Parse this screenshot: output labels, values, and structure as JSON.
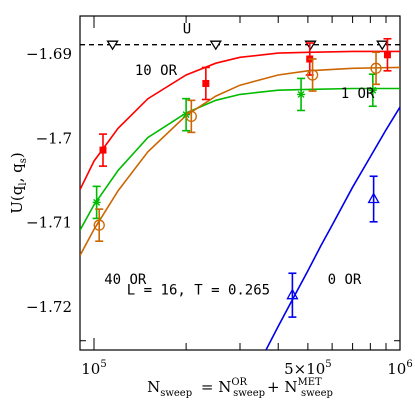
{
  "chart_data": {
    "type": "scatter",
    "title": "",
    "xlabel": {
      "parts": [
        {
          "text": "N",
          "sub": "sweep"
        },
        {
          "text": " = N",
          "sup": "OR",
          "sub": "sweep"
        },
        {
          "text": "+ N",
          "sup": "MET",
          "sub": "sweep"
        }
      ]
    },
    "ylabel": {
      "text": "U(q",
      "sub1": "l",
      "mid": ", q",
      "sub2": "s",
      "end": ")"
    },
    "x_scale": "log",
    "xlim": [
      90000,
      1000000
    ],
    "ylim": [
      -1.7251,
      -1.6855
    ],
    "grid": false,
    "x_tick_labels": [
      {
        "value": 100000,
        "mantissa": "10",
        "exp": "5"
      },
      {
        "value": 500000,
        "mantissa": "5×10",
        "exp": "5"
      },
      {
        "value": 1000000,
        "mantissa": "10",
        "exp": "6"
      }
    ],
    "y_tick_labels": [
      {
        "value": -1.69,
        "label": "−1.69"
      },
      {
        "value": -1.7,
        "label": "−1.7"
      },
      {
        "value": -1.71,
        "label": "−1.71"
      },
      {
        "value": -1.72,
        "label": "−1.72"
      }
    ],
    "series": [
      {
        "name": "U",
        "color": "#000000",
        "marker": "triangle-down",
        "line": "dashed",
        "points": [
          {
            "x": 115000,
            "y": -1.6889
          },
          {
            "x": 250000,
            "y": -1.6889
          },
          {
            "x": 510000,
            "y": -1.6889
          },
          {
            "x": 875000,
            "y": -1.6889
          }
        ],
        "curve": [
          [
            90000,
            -1.6889
          ],
          [
            1000000,
            -1.6889
          ]
        ]
      },
      {
        "name": "10 OR",
        "color": "#ff0000",
        "marker": "filled-square",
        "line": "solid",
        "points": [
          {
            "x": 107000,
            "y": -1.7014,
            "err": 0.0019
          },
          {
            "x": 232000,
            "y": -1.6935,
            "err": 0.0019
          },
          {
            "x": 507000,
            "y": -1.6906,
            "err": 0.0019
          },
          {
            "x": 910000,
            "y": -1.6901,
            "err": 0.0019
          }
        ],
        "curve": [
          [
            90000,
            -1.7061
          ],
          [
            100000,
            -1.7027
          ],
          [
            120000,
            -1.6988
          ],
          [
            150000,
            -1.6953
          ],
          [
            200000,
            -1.6925
          ],
          [
            250000,
            -1.6911
          ],
          [
            300000,
            -1.6904
          ],
          [
            400000,
            -1.6899
          ],
          [
            500000,
            -1.6898
          ],
          [
            700000,
            -1.6897
          ],
          [
            1000000,
            -1.6897
          ]
        ]
      },
      {
        "name": "1 OR",
        "color": "#00bb00",
        "marker": "asterisk",
        "line": "solid",
        "points": [
          {
            "x": 102000,
            "y": -1.7076,
            "err": 0.0019
          },
          {
            "x": 200000,
            "y": -1.6972,
            "err": 0.0019
          },
          {
            "x": 475000,
            "y": -1.6948,
            "err": 0.0019
          },
          {
            "x": 815000,
            "y": -1.6943,
            "err": 0.0019
          }
        ],
        "curve": [
          [
            90000,
            -1.7109
          ],
          [
            100000,
            -1.7079
          ],
          [
            120000,
            -1.7038
          ],
          [
            150000,
            -1.6999
          ],
          [
            200000,
            -1.697
          ],
          [
            250000,
            -1.6955
          ],
          [
            300000,
            -1.6948
          ],
          [
            400000,
            -1.6943
          ],
          [
            500000,
            -1.6942
          ],
          [
            700000,
            -1.6941
          ],
          [
            1000000,
            -1.6941
          ]
        ]
      },
      {
        "name": "40 OR",
        "color": "#cc6600",
        "marker": "open-circle",
        "line": "solid",
        "points": [
          {
            "x": 104000,
            "y": -1.7103,
            "err": 0.0019
          },
          {
            "x": 208000,
            "y": -1.6974,
            "err": 0.0019
          },
          {
            "x": 518000,
            "y": -1.6925,
            "err": 0.0019
          },
          {
            "x": 835000,
            "y": -1.6917,
            "err": 0.0019
          }
        ],
        "curve": [
          [
            90000,
            -1.7139
          ],
          [
            100000,
            -1.7108
          ],
          [
            120000,
            -1.7062
          ],
          [
            150000,
            -1.7016
          ],
          [
            200000,
            -1.6973
          ],
          [
            250000,
            -1.695
          ],
          [
            300000,
            -1.6937
          ],
          [
            400000,
            -1.6925
          ],
          [
            500000,
            -1.692
          ],
          [
            700000,
            -1.6917
          ],
          [
            1000000,
            -1.6916
          ]
        ]
      },
      {
        "name": "0 OR",
        "color": "#0000ee",
        "marker": "open-triangle",
        "line": "solid",
        "points": [
          {
            "x": 445000,
            "y": -1.7186,
            "err": 0.0026
          },
          {
            "x": 820000,
            "y": -1.7072,
            "err": 0.0027
          }
        ],
        "curve": [
          [
            360000,
            -1.7255
          ],
          [
            400000,
            -1.7223
          ],
          [
            450000,
            -1.7188
          ],
          [
            500000,
            -1.7157
          ],
          [
            550000,
            -1.7128
          ],
          [
            600000,
            -1.7103
          ],
          [
            700000,
            -1.7058
          ],
          [
            800000,
            -1.7022
          ],
          [
            900000,
            -1.699
          ],
          [
            1000000,
            -1.6963
          ]
        ]
      }
    ],
    "annotations": [
      {
        "text": "U",
        "x": 195000,
        "y": -1.6876,
        "color": "#000000"
      },
      {
        "text": "10 OR",
        "x": 136000,
        "y": -1.6925,
        "color": "#000000"
      },
      {
        "text": "1 OR",
        "x": 640000,
        "y": -1.6952,
        "color": "#000000"
      },
      {
        "text": "40 OR",
        "x": 108000,
        "y": -1.7173,
        "color": "#000000"
      },
      {
        "text": "0 OR",
        "x": 580000,
        "y": -1.7173,
        "color": "#000000"
      },
      {
        "text": "L = 16, T = 0.265",
        "x": 128000,
        "y": -1.7185,
        "color": "#000000"
      }
    ]
  }
}
